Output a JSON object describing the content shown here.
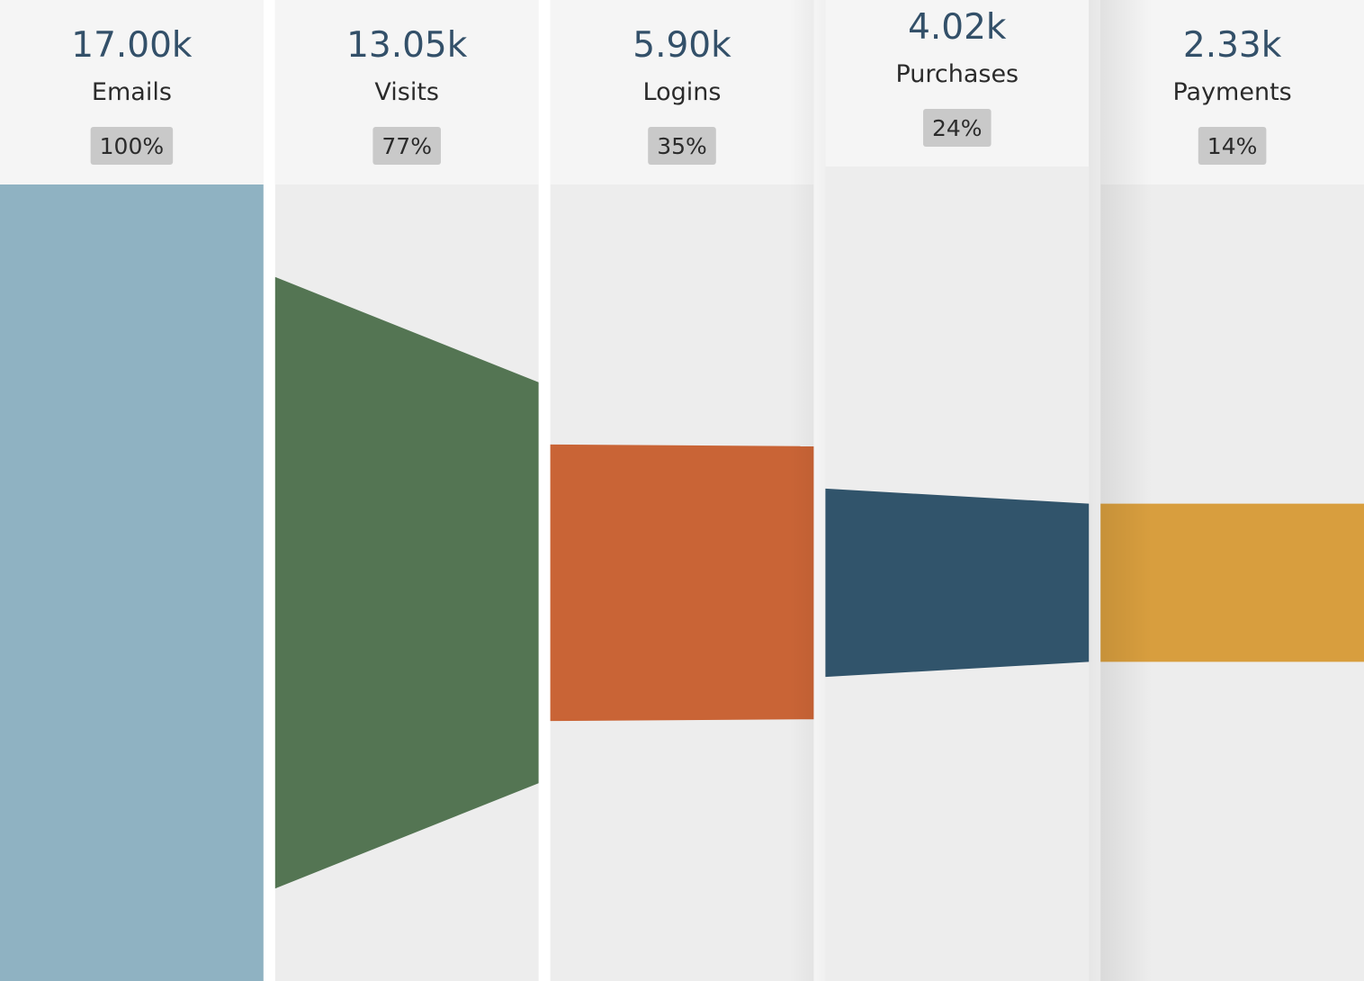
{
  "chart_data": {
    "type": "funnel",
    "title": "",
    "stages": [
      {
        "label": "Emails",
        "value": 17000,
        "value_label": "17.00k",
        "percent_label": "100%",
        "color": "#8fb2c2"
      },
      {
        "label": "Visits",
        "value": 13050,
        "value_label": "13.05k",
        "percent_label": "77%",
        "color": "#547553"
      },
      {
        "label": "Logins",
        "value": 5900,
        "value_label": "5.90k",
        "percent_label": "35%",
        "color": "#c96436"
      },
      {
        "label": "Purchases",
        "value": 4020,
        "value_label": "4.02k",
        "percent_label": "24%",
        "color": "#31546b"
      },
      {
        "label": "Payments",
        "value": 2330,
        "value_label": "2.33k",
        "percent_label": "14%",
        "color": "#d89e3e"
      }
    ],
    "highlighted_stage": "Purchases"
  },
  "colors": {
    "header_background": "#f5f5f5",
    "column_background": "#ededed",
    "badge_background": "#c9c9c9",
    "value_text": "#335069",
    "label_text": "#2b2b2b"
  }
}
